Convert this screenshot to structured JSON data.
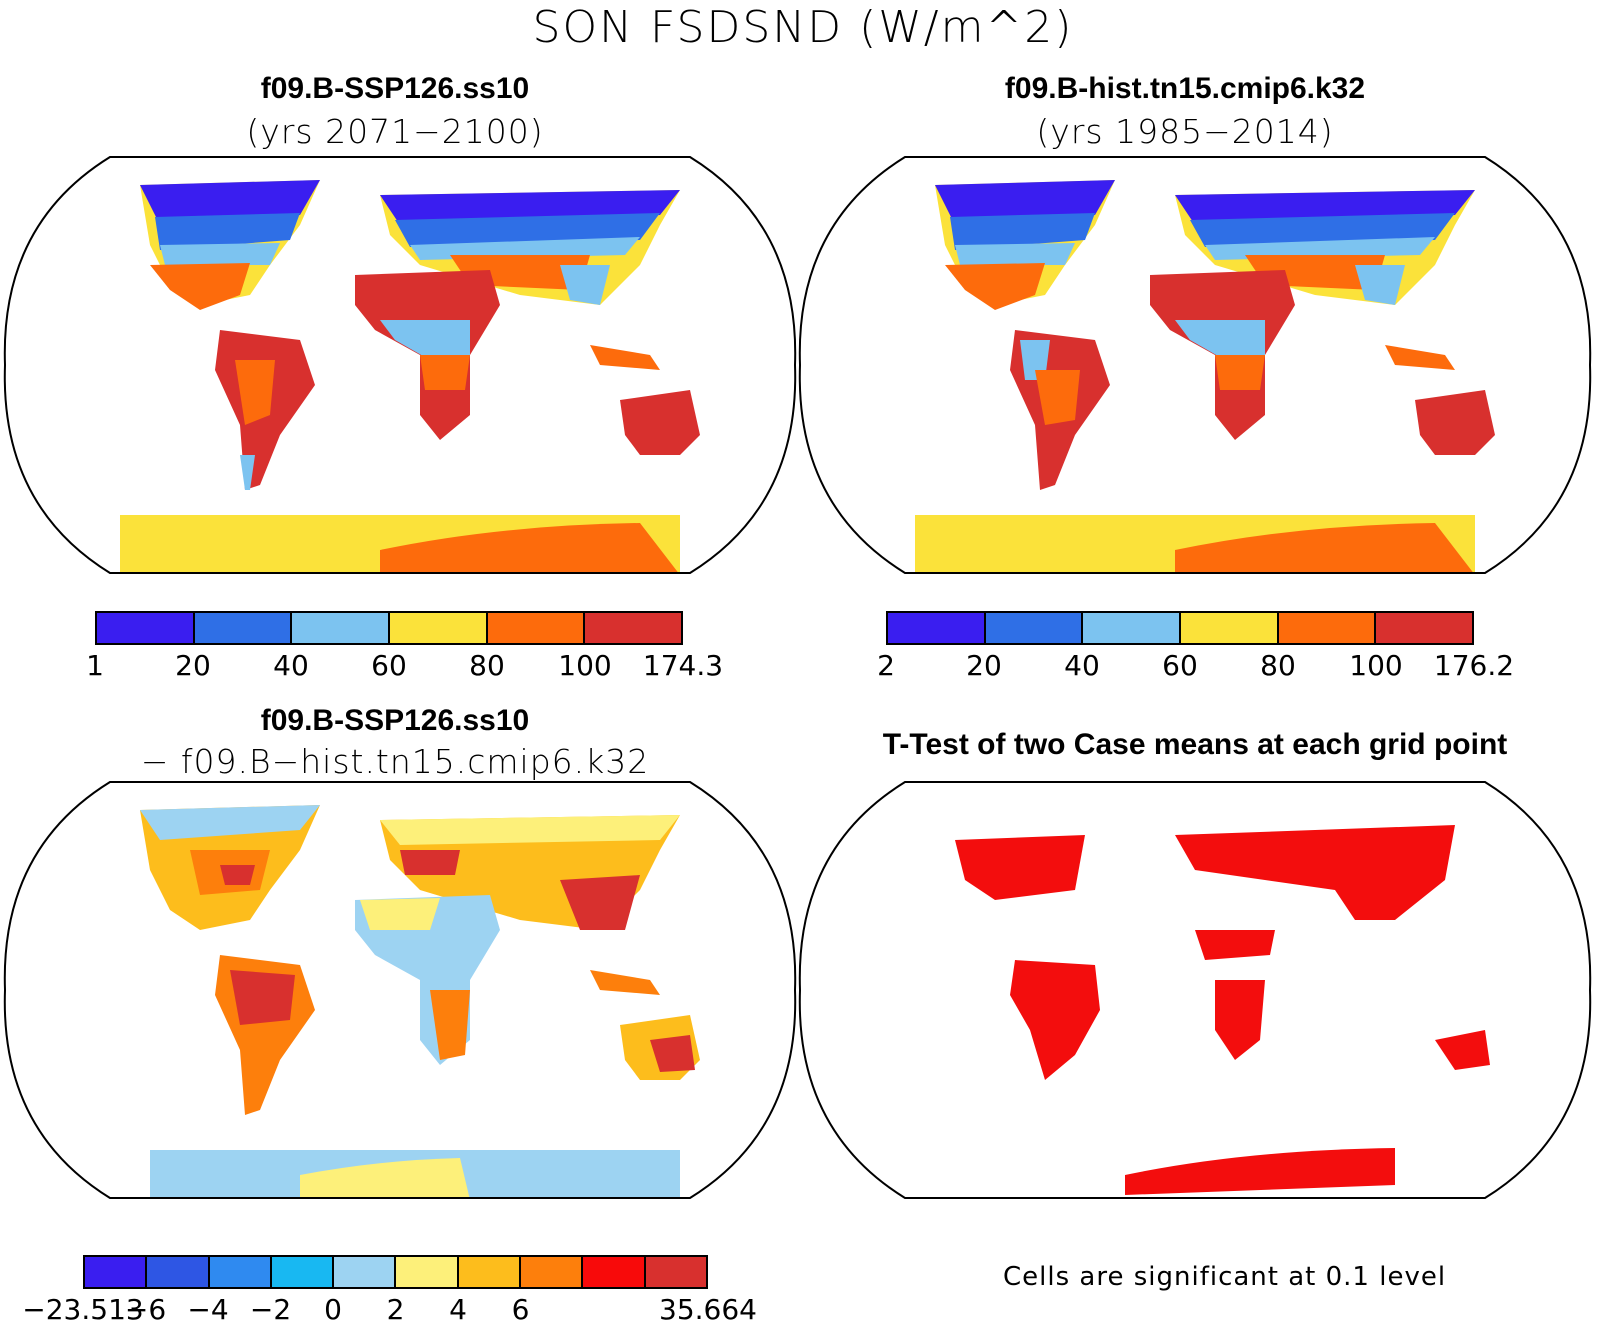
{
  "figure": {
    "title": "SON FSDSND (W/m^2)"
  },
  "panels": [
    {
      "title": "f09.B-SSP126.ss10",
      "subtitle": "(yrs 2071−2100)",
      "colorbar": {
        "labels": [
          "1",
          "20",
          "40",
          "60",
          "80",
          "100",
          "174.3"
        ],
        "colors": [
          "#3a1ef0",
          "#2f6fe6",
          "#7cc3f0",
          "#fbe23a",
          "#fd6b0c",
          "#d8302e"
        ]
      }
    },
    {
      "title": "f09.B-hist.tn15.cmip6.k32",
      "subtitle": "(yrs 1985−2014)",
      "colorbar": {
        "labels": [
          "2",
          "20",
          "40",
          "60",
          "80",
          "100",
          "176.2"
        ],
        "colors": [
          "#3a1ef0",
          "#2f6fe6",
          "#7cc3f0",
          "#fbe23a",
          "#fd6b0c",
          "#d8302e"
        ]
      }
    },
    {
      "title": "f09.B-SSP126.ss10",
      "subtitle": "− f09.B−hist.tn15.cmip6.k32",
      "colorbar": {
        "labels": [
          "−23.513",
          "−6",
          "−4",
          "−2",
          "0",
          "2",
          "4",
          "6",
          "35.664"
        ],
        "colors": [
          "#3a1ef0",
          "#2e56e4",
          "#2f8af0",
          "#18b8f2",
          "#9dd3f2",
          "#fdf07a",
          "#fdbd1c",
          "#fd7f0c",
          "#f80a0a",
          "#d8302e"
        ]
      }
    },
    {
      "title": "T-Test of two Case means at each grid point",
      "note": "Cells are significant at 0.1 level",
      "color": "#f30d0d"
    }
  ]
}
